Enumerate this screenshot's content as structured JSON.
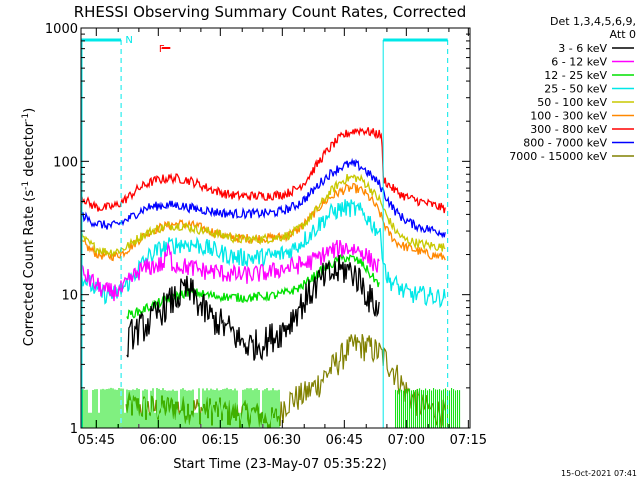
{
  "chart_data": {
    "type": "line",
    "title": "RHESSI Observing Summary Count Rates, Corrected",
    "xlabel": "Start Time (23-May-07 05:35:22)",
    "ylabel_main": "Corrected Count Rate (s",
    "ylabel_sup1": "-1",
    "ylabel_mid": " detector",
    "ylabel_sup2": "-1",
    "ylabel_end": ")",
    "y_scale": "log",
    "ylim": [
      1,
      1000
    ],
    "x_range_min": [
      5.9,
      100
    ],
    "y_ticks": [
      {
        "v": 1,
        "label": "1"
      },
      {
        "v": 10,
        "label": "10"
      },
      {
        "v": 100,
        "label": "100"
      },
      {
        "v": 1000,
        "label": "1000"
      }
    ],
    "x_ticks": [
      {
        "t": 9.6,
        "label": "05:45"
      },
      {
        "t": 24.6,
        "label": "06:00"
      },
      {
        "t": 39.6,
        "label": "06:15"
      },
      {
        "t": 54.6,
        "label": "06:30"
      },
      {
        "t": 69.6,
        "label": "06:45"
      },
      {
        "t": 84.6,
        "label": "07:00"
      },
      {
        "t": 99.6,
        "label": "07:15"
      }
    ],
    "legend_header": [
      "Det 1,3,4,5,6,9,",
      "Att 0"
    ],
    "legend_position": "right",
    "series": [
      {
        "name": "3 - 6 keV",
        "color": "#000000",
        "t": [
          17,
          18,
          20,
          22,
          24,
          26,
          28,
          30,
          31,
          33,
          35,
          37,
          38,
          40,
          41,
          42,
          44,
          46,
          48,
          50,
          52,
          54,
          56,
          58,
          60,
          62,
          64,
          66,
          68,
          70,
          71,
          72,
          73,
          74,
          75,
          76,
          77,
          78
        ],
        "y": [
          4,
          5,
          5.5,
          6,
          7,
          8,
          9,
          10,
          11,
          10,
          8,
          7,
          6.5,
          6,
          5.5,
          5.5,
          4.6,
          4.2,
          4.2,
          4.3,
          4.8,
          5.2,
          6,
          7.5,
          9,
          11,
          13,
          14,
          15,
          15.5,
          15,
          14.5,
          13,
          12,
          10,
          9,
          8.5,
          7.5
        ]
      },
      {
        "name": "6 - 12 keV",
        "color": "#ff00ff",
        "t": [
          5.9,
          8,
          10,
          12,
          14,
          16,
          17,
          18,
          19,
          20,
          22,
          24,
          26,
          27,
          28,
          30,
          32,
          34,
          36,
          38,
          40,
          42,
          44,
          46,
          48,
          50,
          52,
          54,
          56,
          58,
          60,
          62,
          64,
          66,
          68,
          70,
          72,
          74,
          75,
          76,
          77,
          78
        ],
        "y": [
          15,
          13,
          11.5,
          10.5,
          10.5,
          11,
          12,
          13,
          14,
          15,
          16,
          16.5,
          17,
          22,
          17,
          16.5,
          16,
          15.5,
          15,
          15,
          14.5,
          14.2,
          14,
          14,
          14.2,
          14.5,
          14.8,
          15.5,
          16,
          16.5,
          17,
          18,
          19.5,
          21,
          22,
          22.5,
          22,
          21,
          19.5,
          18,
          17,
          16
        ]
      },
      {
        "name": "12 - 25 keV",
        "color": "#00e000",
        "t": [
          17,
          20,
          22,
          24,
          26,
          28,
          30,
          32,
          34,
          36,
          38,
          40,
          42,
          44,
          46,
          48,
          50,
          52,
          54,
          56,
          58,
          60,
          62,
          64,
          66,
          68,
          70,
          72,
          74,
          75,
          76,
          77,
          78
        ],
        "y": [
          7,
          7.5,
          8,
          8.5,
          9,
          9.5,
          10,
          10.5,
          10.3,
          10,
          9.8,
          9.7,
          9.6,
          9.5,
          9.5,
          9.6,
          9.7,
          9.8,
          10,
          10.5,
          11,
          12,
          13.5,
          15,
          16.5,
          18,
          19,
          18.5,
          17,
          15.5,
          14,
          13,
          12
        ]
      },
      {
        "name": "25 - 50 keV",
        "color": "#00e8e8",
        "t": [
          5.9,
          8,
          10,
          12,
          14,
          16,
          18,
          20,
          22,
          24,
          26,
          28,
          30,
          32,
          34,
          36,
          38,
          40,
          42,
          44,
          46,
          48,
          50,
          52,
          54,
          56,
          58,
          60,
          62,
          64,
          66,
          68,
          70,
          72,
          74,
          75,
          76,
          77,
          78,
          80,
          82,
          84,
          86,
          88,
          90,
          92,
          94
        ],
        "y": [
          14,
          12,
          10.5,
          10,
          10,
          11,
          13,
          16,
          19,
          21,
          22.5,
          23.5,
          24,
          24,
          23.5,
          22.5,
          21.5,
          20.5,
          19.5,
          19,
          19,
          19,
          19.2,
          19.5,
          20,
          21,
          23,
          26,
          30,
          35,
          40,
          43,
          45,
          44,
          41,
          38,
          35,
          32,
          30,
          13,
          12,
          10.5,
          10,
          10,
          9.8,
          9.6,
          9.5
        ]
      },
      {
        "name": "50 - 100 keV",
        "color": "#c8c800",
        "t": [
          5.9,
          8,
          10,
          12,
          14,
          16,
          18,
          20,
          22,
          24,
          26,
          28,
          30,
          32,
          34,
          36,
          38,
          40,
          42,
          44,
          46,
          48,
          50,
          52,
          54,
          56,
          58,
          60,
          62,
          64,
          66,
          68,
          70,
          72,
          74,
          76,
          77,
          78,
          80,
          82,
          84,
          86,
          88,
          90,
          92,
          94
        ],
        "y": [
          27,
          24,
          22,
          21,
          21,
          22,
          24,
          27,
          29,
          31,
          32,
          33,
          33,
          32,
          31,
          30,
          29,
          28,
          27,
          26,
          26,
          26,
          26.2,
          26.5,
          27,
          28,
          30,
          34,
          40,
          48,
          58,
          67,
          74,
          76,
          72,
          62,
          56,
          52,
          38,
          30,
          26,
          25,
          24,
          23.5,
          23,
          22.5
        ]
      },
      {
        "name": "100 - 300 keV",
        "color": "#ff8800",
        "t": [
          5.9,
          8,
          10,
          12,
          14,
          16,
          18,
          20,
          22,
          24,
          26,
          28,
          30,
          32,
          34,
          36,
          38,
          40,
          42,
          44,
          46,
          48,
          50,
          52,
          54,
          56,
          58,
          60,
          62,
          64,
          66,
          68,
          70,
          72,
          74,
          76,
          77,
          78,
          80,
          82,
          84,
          86,
          88,
          90,
          92,
          94
        ],
        "y": [
          25,
          22,
          20,
          19.5,
          19.5,
          20.5,
          23,
          26,
          29,
          31,
          32.5,
          33.5,
          34,
          33.5,
          32.5,
          31,
          29.5,
          28,
          27,
          26.5,
          26.5,
          26.5,
          26.5,
          26.8,
          27,
          28,
          30,
          34,
          40,
          47,
          53,
          58,
          62,
          63,
          60,
          52,
          47,
          42,
          30,
          25,
          23,
          22,
          21,
          20,
          19.5,
          19
        ]
      },
      {
        "name": "300 - 800 keV",
        "color": "#ff0000",
        "t": [
          5.9,
          8,
          10,
          12,
          14,
          16,
          18,
          20,
          22,
          24,
          26,
          28,
          30,
          32,
          34,
          36,
          38,
          40,
          42,
          44,
          46,
          48,
          50,
          52,
          54,
          56,
          58,
          60,
          62,
          64,
          66,
          68,
          70,
          72,
          74,
          76,
          78,
          78.6,
          79,
          80,
          82,
          84,
          86,
          88,
          90,
          92,
          94
        ],
        "y": [
          55,
          48,
          45,
          45,
          46,
          50,
          56,
          63,
          68,
          72,
          74,
          75,
          74,
          72,
          68,
          64,
          61,
          58,
          56,
          55,
          55,
          55,
          55,
          55.5,
          56,
          58,
          62,
          70,
          85,
          105,
          125,
          145,
          160,
          170,
          172,
          165,
          160,
          160,
          75,
          68,
          60,
          55,
          52,
          50,
          48,
          46,
          44
        ]
      },
      {
        "name": "800 - 7000 keV",
        "color": "#0000ff",
        "t": [
          5.9,
          8,
          10,
          12,
          14,
          16,
          18,
          20,
          22,
          24,
          26,
          28,
          30,
          32,
          34,
          36,
          38,
          40,
          42,
          44,
          46,
          48,
          50,
          52,
          54,
          56,
          58,
          60,
          62,
          64,
          66,
          68,
          70,
          72,
          74,
          76,
          78,
          80,
          82,
          84,
          86,
          88,
          90,
          92,
          94
        ],
        "y": [
          40,
          36,
          34,
          33,
          33,
          35,
          38,
          42,
          45,
          46,
          47,
          47,
          46.5,
          45,
          44,
          43,
          42,
          41,
          40.5,
          40.5,
          40.5,
          40.5,
          40.8,
          41,
          42,
          44,
          47,
          52,
          60,
          70,
          80,
          88,
          94,
          95,
          90,
          78,
          68,
          52,
          42,
          37,
          34,
          32,
          31,
          30,
          29
        ]
      },
      {
        "name": "7000 - 15000 keV",
        "color": "#808000",
        "t": [
          16.8,
          17.5,
          20,
          24,
          28,
          32,
          36,
          40,
          44,
          48,
          50,
          52,
          54,
          55,
          56,
          58,
          60,
          62,
          64,
          66,
          68,
          70,
          72,
          74,
          76,
          78,
          80,
          82,
          84,
          86,
          88,
          90,
          92,
          94
        ],
        "y": [
          1.4,
          1.5,
          1.45,
          1.4,
          1.45,
          1.4,
          1.4,
          1.35,
          1.3,
          1.3,
          1.2,
          1.15,
          1.25,
          1.5,
          1.6,
          1.7,
          1.8,
          2.0,
          2.3,
          2.7,
          3.2,
          3.8,
          4.2,
          4.2,
          4.0,
          3.7,
          3.2,
          2.6,
          2.0,
          1.7,
          1.5,
          1.4,
          1.35,
          1.3
        ]
      }
    ],
    "annotations": [
      {
        "label": "N",
        "color": "#00e8e8",
        "t": 15.6
      },
      {
        "label": "F",
        "color": "#ff0000",
        "t": 23.5
      }
    ],
    "night_markers": {
      "color": "#00e8e8",
      "segments": [
        [
          0,
          15.6
        ],
        [
          79.0,
          94.6
        ]
      ],
      "dashed_at": [
        15.6,
        94.6
      ],
      "solid_at": [
        79.0
      ]
    },
    "flare_marker": {
      "color": "#ff0000",
      "t": [
        25.5,
        27.5
      ]
    },
    "footer": "15-Oct-2021 07:41"
  }
}
